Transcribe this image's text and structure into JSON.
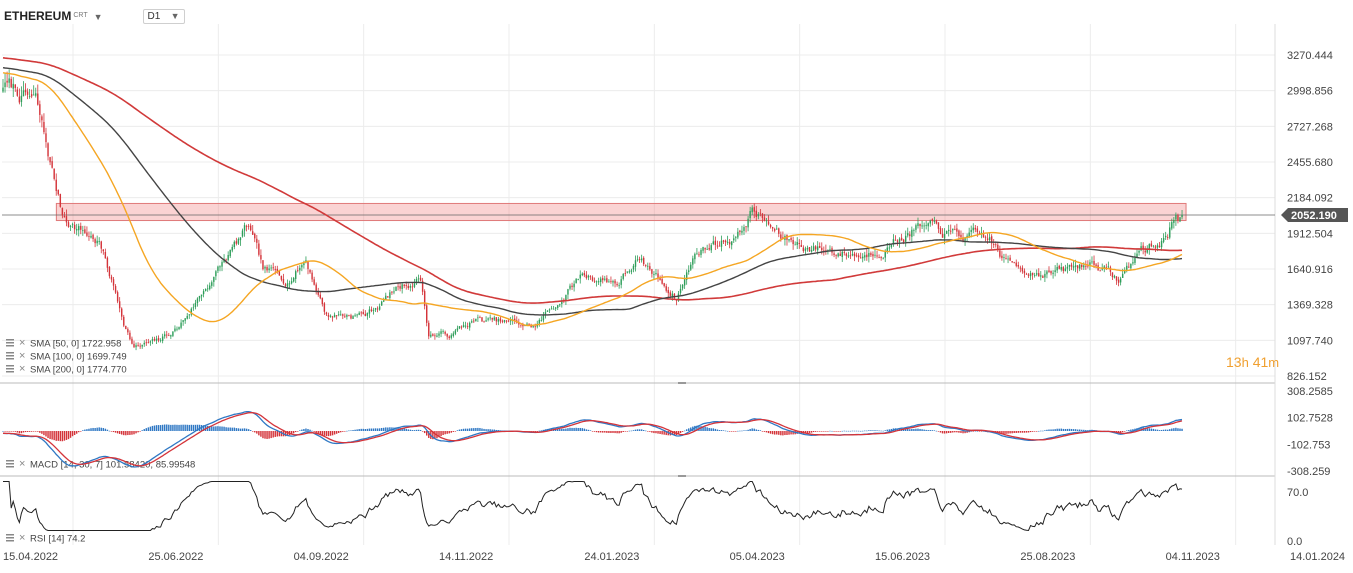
{
  "header": {
    "symbol": "ETHEREUM",
    "symbol_suffix": "CRT",
    "timeframe": "D1",
    "symbol_caret_icon": "caret-down-icon",
    "timeframe_caret_icon": "caret-down-icon"
  },
  "countdown": {
    "hours": "13",
    "hours_unit": "h",
    "minutes": "41",
    "minutes_unit": "m"
  },
  "colors": {
    "up": "#2e9e5a",
    "down": "#d4343a",
    "sma50": "#f5a623",
    "sma100": "#444444",
    "sma200": "#d13a3a",
    "resistance_fill": "rgba(240,110,110,0.30)",
    "resistance_edge": "#e07a7a",
    "macd_line": "#2f78c4",
    "macd_signal": "#d4343a",
    "hist_pos": "#2f78c4",
    "hist_neg": "#d4343a",
    "rsi": "#222222",
    "price_badge": "#555555",
    "grid": "#ececec"
  },
  "chart_data": [
    {
      "type": "candlestick",
      "title": "ETHEREUM D1",
      "x_ticks": [
        "15.04.2022",
        "25.06.2022",
        "04.09.2022",
        "14.11.2022",
        "24.01.2023",
        "05.04.2023",
        "15.06.2023",
        "25.08.2023",
        "04.11.2023",
        "14.01.2024"
      ],
      "y_ticks": [
        "3270.444",
        "2998.856",
        "2727.268",
        "2455.680",
        "2184.092",
        "1912.504",
        "1640.916",
        "1369.328",
        "1097.740",
        "826.152"
      ],
      "ylim": [
        826.152,
        3380
      ],
      "current_price": "2052.190",
      "resistance_zone": [
        2010,
        2140
      ],
      "series": [
        {
          "name": "price",
          "x_start": "15.04.2022",
          "interval": "1D",
          "close_anchors": [
            [
              "15.04.2022",
              3050
            ],
            [
              "01.05.2022",
              2900
            ],
            [
              "10.05.2022",
              2300
            ],
            [
              "14.05.2022",
              2050
            ],
            [
              "01.06.2022",
              1850
            ],
            [
              "13.06.2022",
              1250
            ],
            [
              "18.06.2022",
              1050
            ],
            [
              "30.06.2022",
              1080
            ],
            [
              "10.07.2022",
              1200
            ],
            [
              "25.07.2022",
              1550
            ],
            [
              "01.08.2022",
              1700
            ],
            [
              "13.08.2022",
              1950
            ],
            [
              "20.08.2022",
              1600
            ],
            [
              "01.09.2022",
              1560
            ],
            [
              "10.09.2022",
              1720
            ],
            [
              "20.09.2022",
              1300
            ],
            [
              "10.10.2022",
              1300
            ],
            [
              "25.10.2022",
              1500
            ],
            [
              "05.11.2022",
              1580
            ],
            [
              "09.11.2022",
              1150
            ],
            [
              "20.11.2022",
              1140
            ],
            [
              "01.12.2022",
              1250
            ],
            [
              "31.12.2022",
              1200
            ],
            [
              "13.01.2023",
              1420
            ],
            [
              "23.01.2023",
              1600
            ],
            [
              "10.02.2023",
              1550
            ],
            [
              "18.02.2023",
              1700
            ],
            [
              "10.03.2023",
              1440
            ],
            [
              "20.03.2023",
              1780
            ],
            [
              "10.04.2023",
              1920
            ],
            [
              "16.04.2023",
              2100
            ],
            [
              "01.05.2023",
              1860
            ],
            [
              "15.05.2023",
              1810
            ],
            [
              "10.06.2023",
              1750
            ],
            [
              "25.06.2023",
              1880
            ],
            [
              "05.07.2023",
              1960
            ],
            [
              "20.07.2023",
              1900
            ],
            [
              "10.08.2023",
              1850
            ],
            [
              "18.08.2023",
              1680
            ],
            [
              "01.09.2023",
              1640
            ],
            [
              "15.09.2023",
              1620
            ],
            [
              "01.10.2023",
              1700
            ],
            [
              "12.10.2023",
              1550
            ],
            [
              "23.10.2023",
              1790
            ],
            [
              "30.10.2023",
              1810
            ],
            [
              "05.11.2023",
              1900
            ],
            [
              "09.11.2023",
              2080
            ],
            [
              "12.11.2023",
              2052
            ]
          ]
        },
        {
          "name": "SMA (50)",
          "label": "SMA [50, 0]",
          "value": "1722.958"
        },
        {
          "name": "SMA (100)",
          "label": "SMA [100, 0]",
          "value": "1699.749"
        },
        {
          "name": "SMA (200)",
          "label": "SMA [200, 0]",
          "value": "1774.770"
        }
      ]
    },
    {
      "type": "line",
      "title": "MACD",
      "label": "MACD [14, 30, 7]",
      "values_text": "101.58420,   85.99548",
      "y_ticks": [
        "308.2585",
        "102.7528",
        "-102.753",
        "-308.259"
      ],
      "ylim": [
        -308.259,
        308.2585
      ]
    },
    {
      "type": "line",
      "title": "RSI",
      "label": "RSI [14]",
      "value": "74.2",
      "y_ticks": [
        "70.0",
        "0.0"
      ],
      "ylim": [
        0,
        100
      ]
    }
  ]
}
